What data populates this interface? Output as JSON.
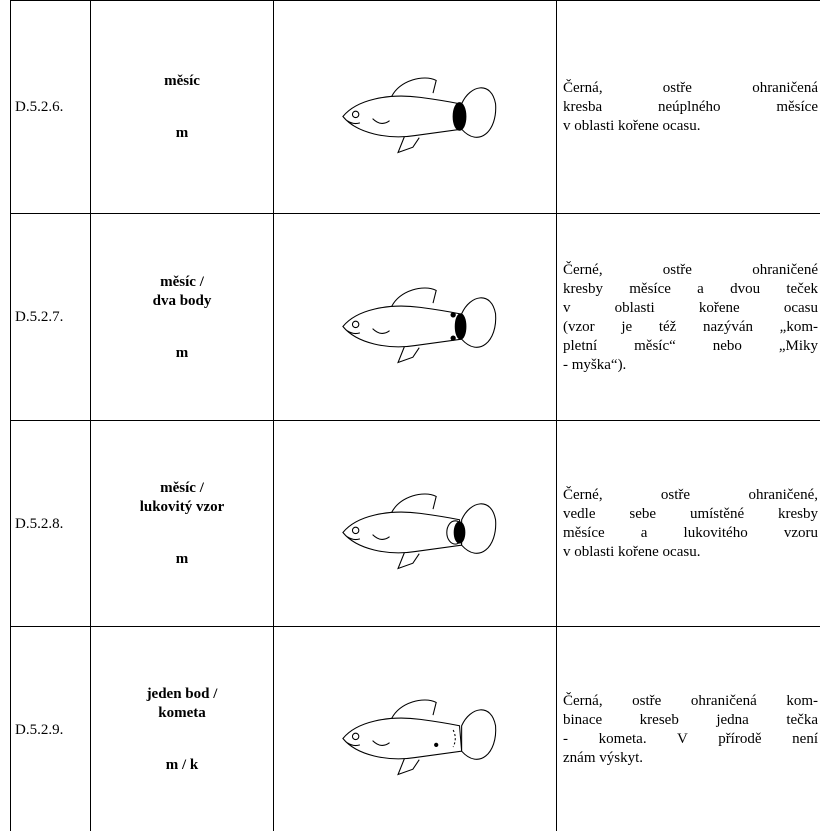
{
  "table": {
    "rows": [
      {
        "code": "D.5.2.6.",
        "name": [
          "měsíc"
        ],
        "abbreviation": "m",
        "description": [
          "Černá, ostře ohraničená",
          "kresba neúplného měsíce",
          "v oblasti kořene ocasu."
        ]
      },
      {
        "code": "D.5.2.7.",
        "name": [
          "měsíc /",
          "dva body"
        ],
        "abbreviation": "m",
        "description": [
          "Černé, ostře ohraničené",
          "kresby měsíce a dvou teček",
          "v oblasti kořene ocasu",
          "(vzor je též nazýván „kom-",
          "pletní měsíc“ nebo „Miky",
          "- myška“)."
        ]
      },
      {
        "code": "D.5.2.8.",
        "name": [
          "měsíc /",
          "lukovitý vzor"
        ],
        "abbreviation": "m",
        "description": [
          "Černé, ostře ohraničené,",
          "vedle sebe umístěné kresby",
          "měsíce a lukovitého vzoru",
          "v oblasti kořene ocasu."
        ]
      },
      {
        "code": "D.5.2.9.",
        "name": [
          "jeden bod /",
          "kometa"
        ],
        "abbreviation": "m / k",
        "description": [
          "Černá, ostře ohraničená kom-",
          "binace kreseb jedna tečka",
          "- kometa. V přírodě není",
          "znám výskyt."
        ]
      }
    ]
  }
}
